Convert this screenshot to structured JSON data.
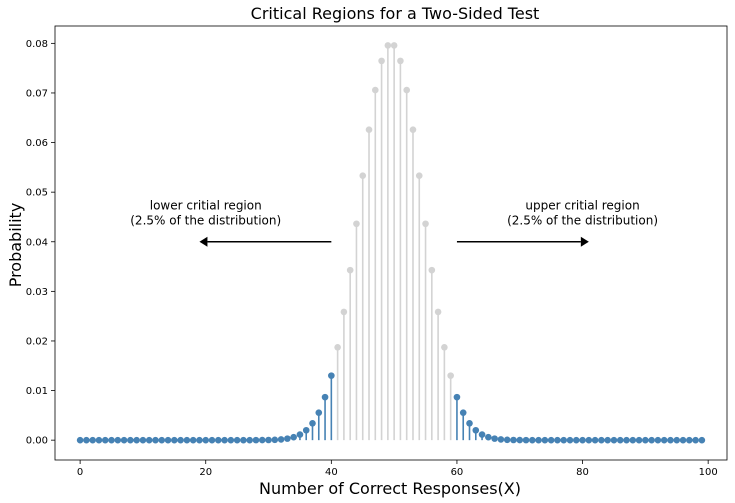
{
  "chart_data": {
    "type": "stem",
    "title": "Critical Regions for a Two-Sided Test",
    "xlabel": "Number of Correct Responses(X)",
    "ylabel": "Probability",
    "xlim": [
      -4,
      103
    ],
    "ylim": [
      -0.004,
      0.0835
    ],
    "xticks": [
      0,
      20,
      40,
      60,
      80,
      100
    ],
    "yticks": [
      0.0,
      0.01,
      0.02,
      0.03,
      0.04,
      0.05,
      0.06,
      0.07,
      0.08
    ],
    "ytick_labels": [
      "0.00",
      "0.01",
      "0.02",
      "0.03",
      "0.04",
      "0.05",
      "0.06",
      "0.07",
      "0.08"
    ],
    "binomial": {
      "n": 99,
      "p": 0.5
    },
    "x_range": [
      0,
      99
    ],
    "critical_lower_max": 40,
    "critical_upper_min": 60,
    "colors": {
      "critical": "#4682b4",
      "middle": "#d3d3d3",
      "arrow": "#000000"
    },
    "annotations": [
      {
        "id": "lower",
        "lines": [
          "lower critial region",
          "(2.5% of the distribution)"
        ],
        "text_x": 20,
        "text_y": 0.0465,
        "arrow_from": [
          40,
          0.04
        ],
        "arrow_to": [
          19,
          0.04
        ]
      },
      {
        "id": "upper",
        "lines": [
          "upper critial region",
          "(2.5% of the distribution)"
        ],
        "text_x": 80,
        "text_y": 0.0465,
        "arrow_from": [
          60,
          0.04
        ],
        "arrow_to": [
          81,
          0.04
        ]
      }
    ]
  }
}
